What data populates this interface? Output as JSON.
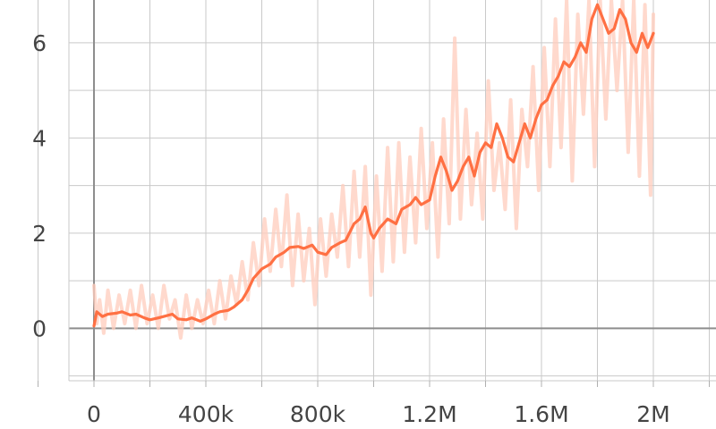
{
  "chart_data": {
    "type": "line",
    "grid": true,
    "legend": "none",
    "xlim": [
      -400000,
      2400000
    ],
    "ylim": [
      -1.1,
      6.9
    ],
    "x_ticks": [
      {
        "value": 0,
        "label": "0"
      },
      {
        "value": 400000,
        "label": "400k"
      },
      {
        "value": 800000,
        "label": "800k"
      },
      {
        "value": 1200000,
        "label": "1.2M"
      },
      {
        "value": 1600000,
        "label": "1.6M"
      },
      {
        "value": 2000000,
        "label": "2M"
      }
    ],
    "y_ticks": [
      {
        "value": 0,
        "label": "0"
      },
      {
        "value": 2,
        "label": "2"
      },
      {
        "value": 4,
        "label": "4"
      },
      {
        "value": 6,
        "label": "6"
      }
    ],
    "series": [
      {
        "role": "smoothed",
        "color": "#ff7043",
        "x": [
          0,
          10000,
          30000,
          50000,
          80000,
          100000,
          130000,
          150000,
          180000,
          200000,
          230000,
          250000,
          280000,
          300000,
          330000,
          350000,
          380000,
          400000,
          430000,
          450000,
          480000,
          500000,
          530000,
          550000,
          570000,
          600000,
          630000,
          650000,
          680000,
          700000,
          730000,
          750000,
          780000,
          800000,
          830000,
          850000,
          880000,
          900000,
          930000,
          950000,
          970000,
          990000,
          1000000,
          1020000,
          1050000,
          1080000,
          1100000,
          1130000,
          1150000,
          1170000,
          1200000,
          1220000,
          1240000,
          1260000,
          1280000,
          1300000,
          1320000,
          1340000,
          1360000,
          1380000,
          1400000,
          1420000,
          1440000,
          1460000,
          1480000,
          1500000,
          1520000,
          1540000,
          1560000,
          1580000,
          1600000,
          1620000,
          1640000,
          1660000,
          1680000,
          1700000,
          1720000,
          1740000,
          1760000,
          1780000,
          1800000,
          1820000,
          1840000,
          1860000,
          1880000,
          1900000,
          1920000,
          1940000,
          1960000,
          1980000,
          2000000
        ],
        "y": [
          0.05,
          0.35,
          0.25,
          0.3,
          0.32,
          0.35,
          0.28,
          0.3,
          0.22,
          0.18,
          0.22,
          0.25,
          0.3,
          0.2,
          0.18,
          0.22,
          0.15,
          0.2,
          0.3,
          0.35,
          0.38,
          0.45,
          0.6,
          0.8,
          1.05,
          1.25,
          1.35,
          1.5,
          1.6,
          1.7,
          1.72,
          1.68,
          1.75,
          1.6,
          1.55,
          1.7,
          1.8,
          1.85,
          2.2,
          2.3,
          2.55,
          2.0,
          1.9,
          2.1,
          2.3,
          2.2,
          2.5,
          2.6,
          2.75,
          2.6,
          2.7,
          3.2,
          3.6,
          3.3,
          2.9,
          3.1,
          3.4,
          3.6,
          3.2,
          3.7,
          3.9,
          3.8,
          4.3,
          4.0,
          3.6,
          3.5,
          3.9,
          4.3,
          4.0,
          4.4,
          4.7,
          4.8,
          5.1,
          5.3,
          5.6,
          5.5,
          5.7,
          6.0,
          5.8,
          6.5,
          6.8,
          6.5,
          6.2,
          6.3,
          6.7,
          6.5,
          6.0,
          5.8,
          6.2,
          5.9,
          6.2
        ]
      },
      {
        "role": "raw",
        "color": "#ffccbc",
        "x": [
          0,
          10000,
          20000,
          35000,
          50000,
          70000,
          90000,
          110000,
          130000,
          150000,
          170000,
          190000,
          210000,
          230000,
          250000,
          270000,
          290000,
          310000,
          330000,
          350000,
          370000,
          390000,
          410000,
          430000,
          450000,
          470000,
          490000,
          510000,
          530000,
          550000,
          570000,
          590000,
          610000,
          630000,
          650000,
          670000,
          690000,
          710000,
          730000,
          750000,
          770000,
          790000,
          810000,
          830000,
          850000,
          870000,
          890000,
          910000,
          930000,
          950000,
          970000,
          990000,
          1010000,
          1030000,
          1050000,
          1070000,
          1090000,
          1110000,
          1130000,
          1150000,
          1170000,
          1190000,
          1210000,
          1230000,
          1250000,
          1270000,
          1290000,
          1310000,
          1330000,
          1350000,
          1370000,
          1390000,
          1410000,
          1430000,
          1450000,
          1470000,
          1490000,
          1510000,
          1530000,
          1550000,
          1570000,
          1590000,
          1610000,
          1630000,
          1650000,
          1670000,
          1690000,
          1710000,
          1730000,
          1750000,
          1770000,
          1790000,
          1810000,
          1830000,
          1850000,
          1870000,
          1890000,
          1910000,
          1930000,
          1950000,
          1970000,
          1990000,
          2000000
        ],
        "y": [
          0.9,
          0.1,
          0.6,
          -0.1,
          0.8,
          0.0,
          0.7,
          0.1,
          0.8,
          0.0,
          0.9,
          0.1,
          0.7,
          0.0,
          0.9,
          0.2,
          0.6,
          -0.2,
          0.7,
          0.0,
          0.6,
          0.1,
          0.8,
          0.1,
          1.0,
          0.2,
          1.1,
          0.5,
          1.4,
          0.6,
          1.8,
          0.9,
          2.3,
          1.2,
          2.5,
          1.3,
          2.8,
          0.9,
          2.4,
          1.0,
          2.1,
          0.5,
          2.3,
          1.1,
          2.4,
          1.5,
          3.0,
          1.3,
          3.3,
          1.5,
          3.4,
          0.7,
          3.2,
          1.2,
          3.8,
          1.4,
          3.9,
          1.6,
          3.6,
          1.8,
          4.2,
          2.1,
          3.9,
          1.5,
          4.4,
          2.2,
          6.1,
          2.3,
          4.6,
          2.6,
          4.1,
          2.3,
          5.2,
          2.9,
          3.9,
          2.5,
          4.8,
          2.1,
          4.6,
          3.4,
          5.5,
          2.9,
          5.9,
          3.4,
          6.5,
          3.8,
          6.9,
          3.1,
          6.6,
          4.5,
          6.9,
          3.4,
          6.9,
          4.4,
          6.9,
          5.0,
          6.9,
          3.7,
          6.9,
          3.2,
          6.8,
          2.8,
          6.6
        ]
      }
    ]
  }
}
